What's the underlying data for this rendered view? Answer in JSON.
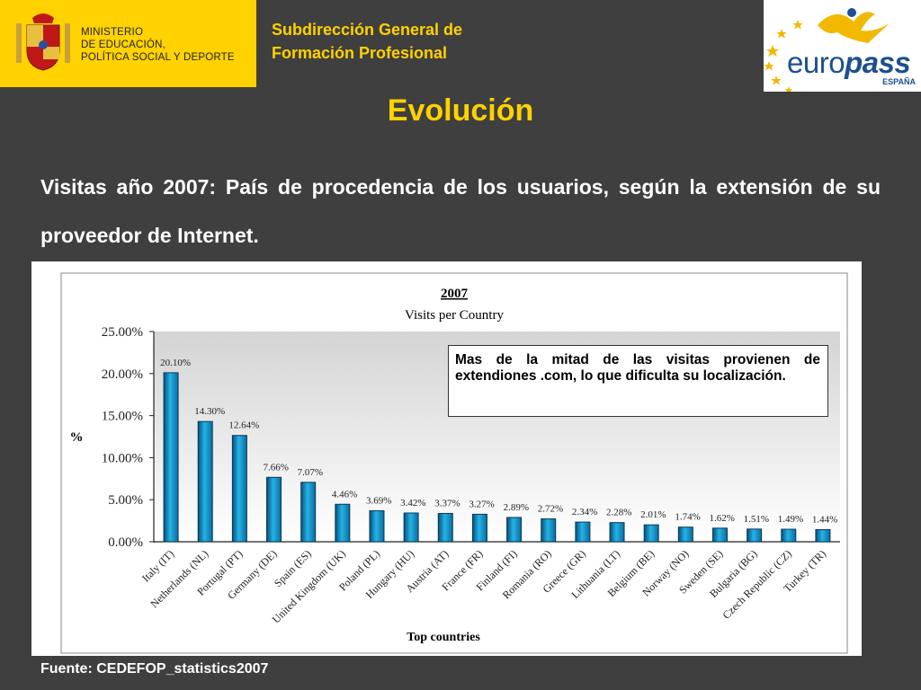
{
  "header": {
    "ministry_lines": [
      "MINISTERIO",
      "DE EDUCACIÓN,",
      "POLÍTICA SOCIAL Y DEPORTE"
    ],
    "subdirection_lines": [
      "Subdirección General de",
      "Formación Profesional"
    ],
    "europass_word_prefix": "euro",
    "europass_word_suffix": "pass",
    "europass_country": "ESPAÑA"
  },
  "slide": {
    "title": "Evolución",
    "subtitle": "Visitas año 2007: País de procedencia de los usuarios, según la extensión de su proveedor de Internet.",
    "note": "Mas de la mitad de las visitas provienen de extendiones .com, lo que dificulta su localización.",
    "source": "Fuente: CEDEFOP_statistics2007"
  },
  "colors": {
    "background": "#3f3f3f",
    "accent": "#ffd200",
    "bar": "#18a4dc",
    "bar_dark": "#0a4f7a"
  },
  "chart_data": {
    "type": "bar",
    "title": "2007",
    "subtitle": "Visits per Country",
    "xlabel": "Top countries",
    "ylabel": "%",
    "ylim": [
      0,
      25
    ],
    "yticks": [
      "0.00%",
      "5.00%",
      "10.00%",
      "15.00%",
      "20.00%",
      "25.00%"
    ],
    "categories": [
      "Italy (IT)",
      "Netherlands (NL)",
      "Portugal (PT)",
      "Germany (DE)",
      "Spain (ES)",
      "United Kingdom (UK)",
      "Poland (PL)",
      "Hungary (HU)",
      "Austria (AT)",
      "France (FR)",
      "Finland (FI)",
      "Romania (RO)",
      "Greece (GR)",
      "Lithuania (LT)",
      "Belgium (BE)",
      "Norway (NO)",
      "Sweden (SE)",
      "Bulgaria (BG)",
      "Czech Republic (CZ)",
      "Turkey (TR)"
    ],
    "values": [
      20.1,
      14.3,
      12.64,
      7.66,
      7.07,
      4.46,
      3.69,
      3.42,
      3.37,
      3.27,
      2.89,
      2.72,
      2.34,
      2.28,
      2.01,
      1.74,
      1.62,
      1.51,
      1.49,
      1.44
    ],
    "value_labels": [
      "20.10%",
      "14.30%",
      "12.64%",
      "7.66%",
      "7.07%",
      "4.46%",
      "3.69%",
      "3.42%",
      "3.37%",
      "3.27%",
      "2.89%",
      "2.72%",
      "2.34%",
      "2.28%",
      "2.01%",
      "1.74%",
      "1.62%",
      "1.51%",
      "1.49%",
      "1.44%"
    ],
    "grid": false,
    "legend": "none"
  }
}
